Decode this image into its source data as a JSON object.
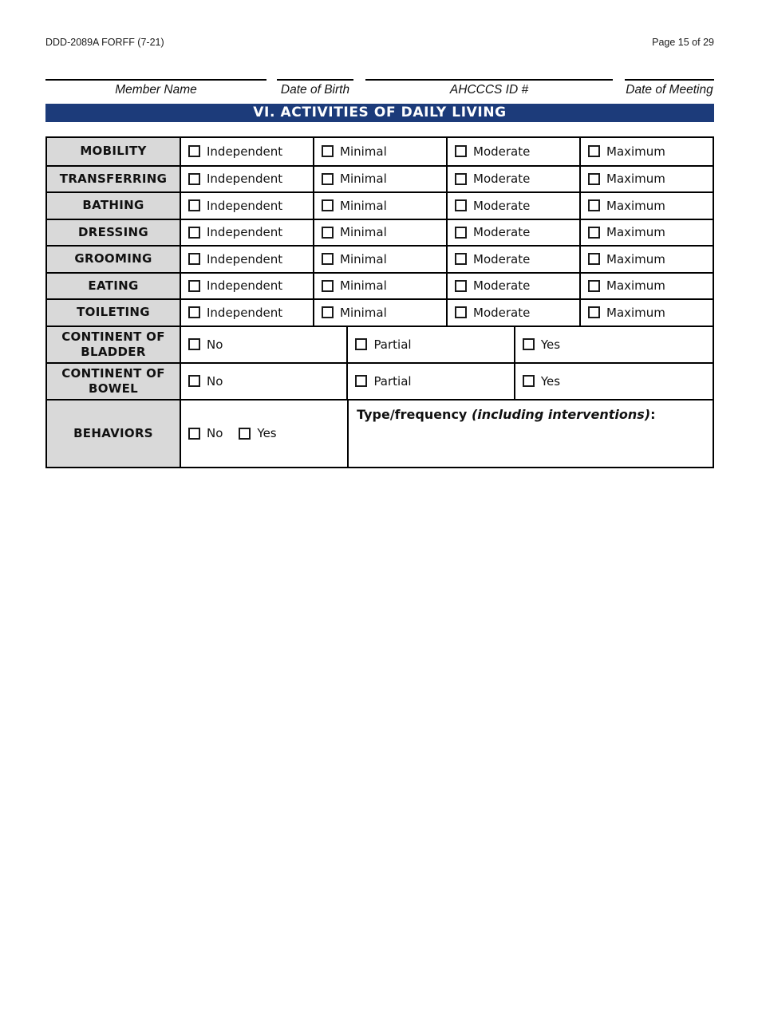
{
  "page": {
    "form_number": "DDD-2089A FORFF (7-21)",
    "page_indicator": "Page 15 of 29"
  },
  "header_fields": [
    {
      "label": "Member Name"
    },
    {
      "label": "Date of Birth"
    },
    {
      "label": "AHCCCS ID #"
    },
    {
      "label": "Date of Meeting"
    }
  ],
  "section": {
    "title": "VI. ACTIVITIES OF DAILY LIVING"
  },
  "adl_table": {
    "activity_rows": [
      {
        "label": "MOBILITY",
        "options": [
          "Independent",
          "Minimal",
          "Moderate",
          "Maximum"
        ]
      },
      {
        "label": "TRANSFERRING",
        "options": [
          "Independent",
          "Minimal",
          "Moderate",
          "Maximum"
        ]
      },
      {
        "label": "BATHING",
        "options": [
          "Independent",
          "Minimal",
          "Moderate",
          "Maximum"
        ]
      },
      {
        "label": "DRESSING",
        "options": [
          "Independent",
          "Minimal",
          "Moderate",
          "Maximum"
        ]
      },
      {
        "label": "GROOMING",
        "options": [
          "Independent",
          "Minimal",
          "Moderate",
          "Maximum"
        ]
      },
      {
        "label": "EATING",
        "options": [
          "Independent",
          "Minimal",
          "Moderate",
          "Maximum"
        ]
      },
      {
        "label": "TOILETING",
        "options": [
          "Independent",
          "Minimal",
          "Moderate",
          "Maximum"
        ]
      }
    ],
    "continence_rows": [
      {
        "label": "CONTINENT OF BLADDER",
        "options": [
          "No",
          "Partial",
          "Yes"
        ]
      },
      {
        "label": "CONTINENT OF BOWEL",
        "options": [
          "No",
          "Partial",
          "Yes"
        ]
      }
    ],
    "behaviors_row": {
      "label": "BEHAVIORS",
      "options": [
        "No",
        "Yes"
      ],
      "detail_bold": "Type/frequency ",
      "detail_italic": "(including interventions)",
      "detail_suffix": ":"
    },
    "checkbox_state": "unchecked"
  },
  "colors": {
    "section_bar_navy": "#1c3b7a",
    "row_label_gray": "#d9d9d9",
    "border_black": "#000000",
    "section_title_text": "#ffffff"
  }
}
